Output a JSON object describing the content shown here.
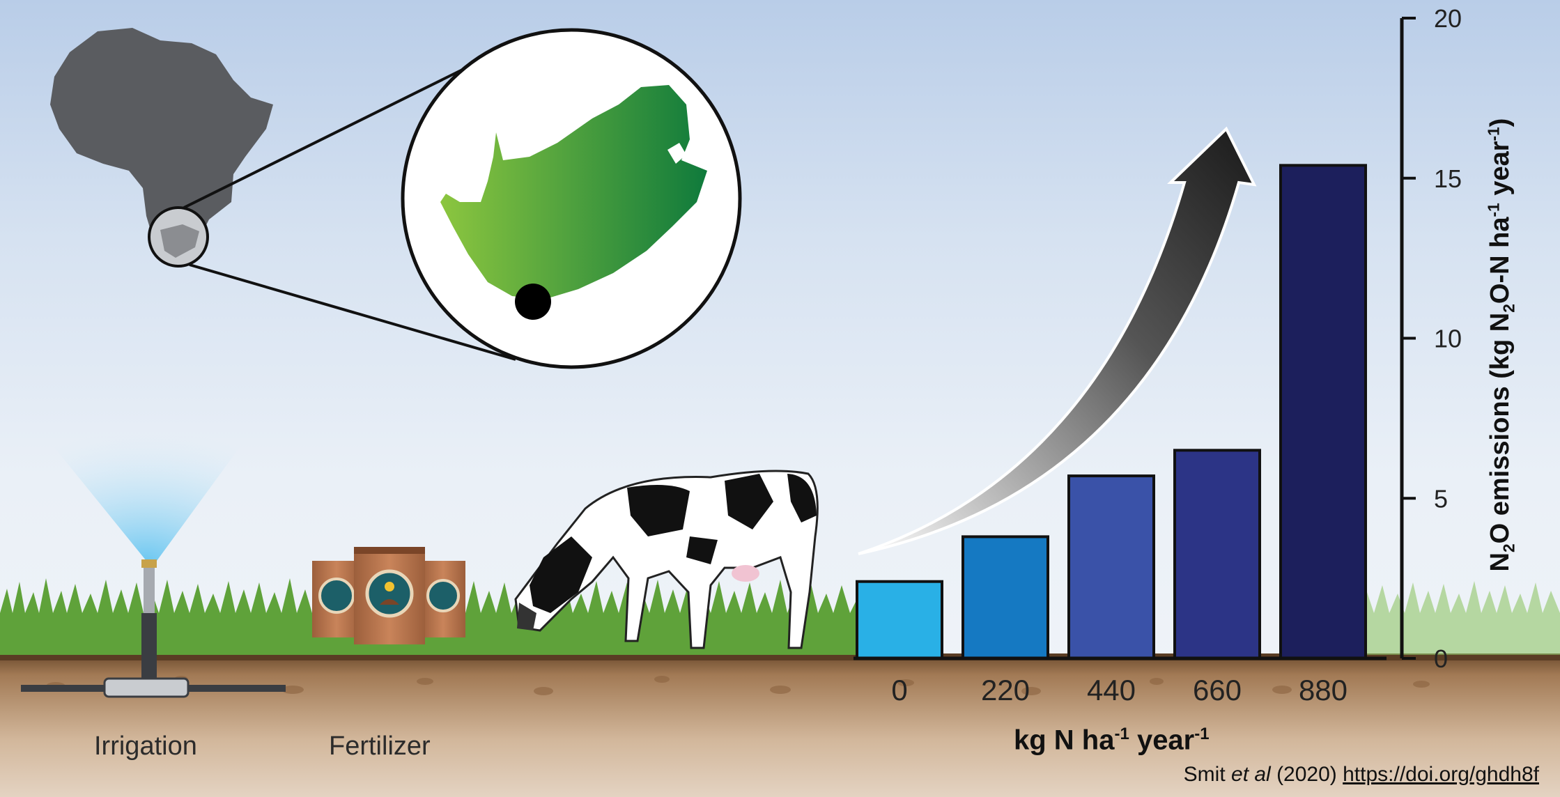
{
  "labels": {
    "irrigation": "Irrigation",
    "fertilizer": "Fertilizer"
  },
  "citation": {
    "author": "Smit ",
    "etal": "et al",
    "year": " (2020) ",
    "doi": "https://doi.org/ghdh8f"
  },
  "chart_data": {
    "type": "bar",
    "categories": [
      "0",
      "220",
      "440",
      "660",
      "880"
    ],
    "values": [
      2.4,
      3.8,
      5.7,
      6.5,
      15.4
    ],
    "xlabel": {
      "main": "kg  N ha",
      "sup1": "-1",
      "mid": "  year",
      "sup2": "-1"
    },
    "ylabel": {
      "a": "N",
      "sub": "2",
      "b": "O emissions  (kg N",
      "sub2": "2",
      "c": "O-N ha",
      "sup1": "-1",
      "d": " year",
      "sup2": "-1",
      "e": ")"
    },
    "ylim": [
      0,
      20
    ],
    "yticks": [
      0,
      5,
      10,
      15,
      20
    ],
    "colors": [
      "#29b0e6",
      "#1579c2",
      "#3a52a8",
      "#2c3486",
      "#1c1f5c"
    ],
    "annotation": "increasing-trend-arrow"
  },
  "icons": [
    "africa-map-icon",
    "south-africa-map-icon",
    "location-dot-icon",
    "sprinkler-icon",
    "fertilizer-bag-icon",
    "cow-icon",
    "grass-icon",
    "soil-icon"
  ]
}
